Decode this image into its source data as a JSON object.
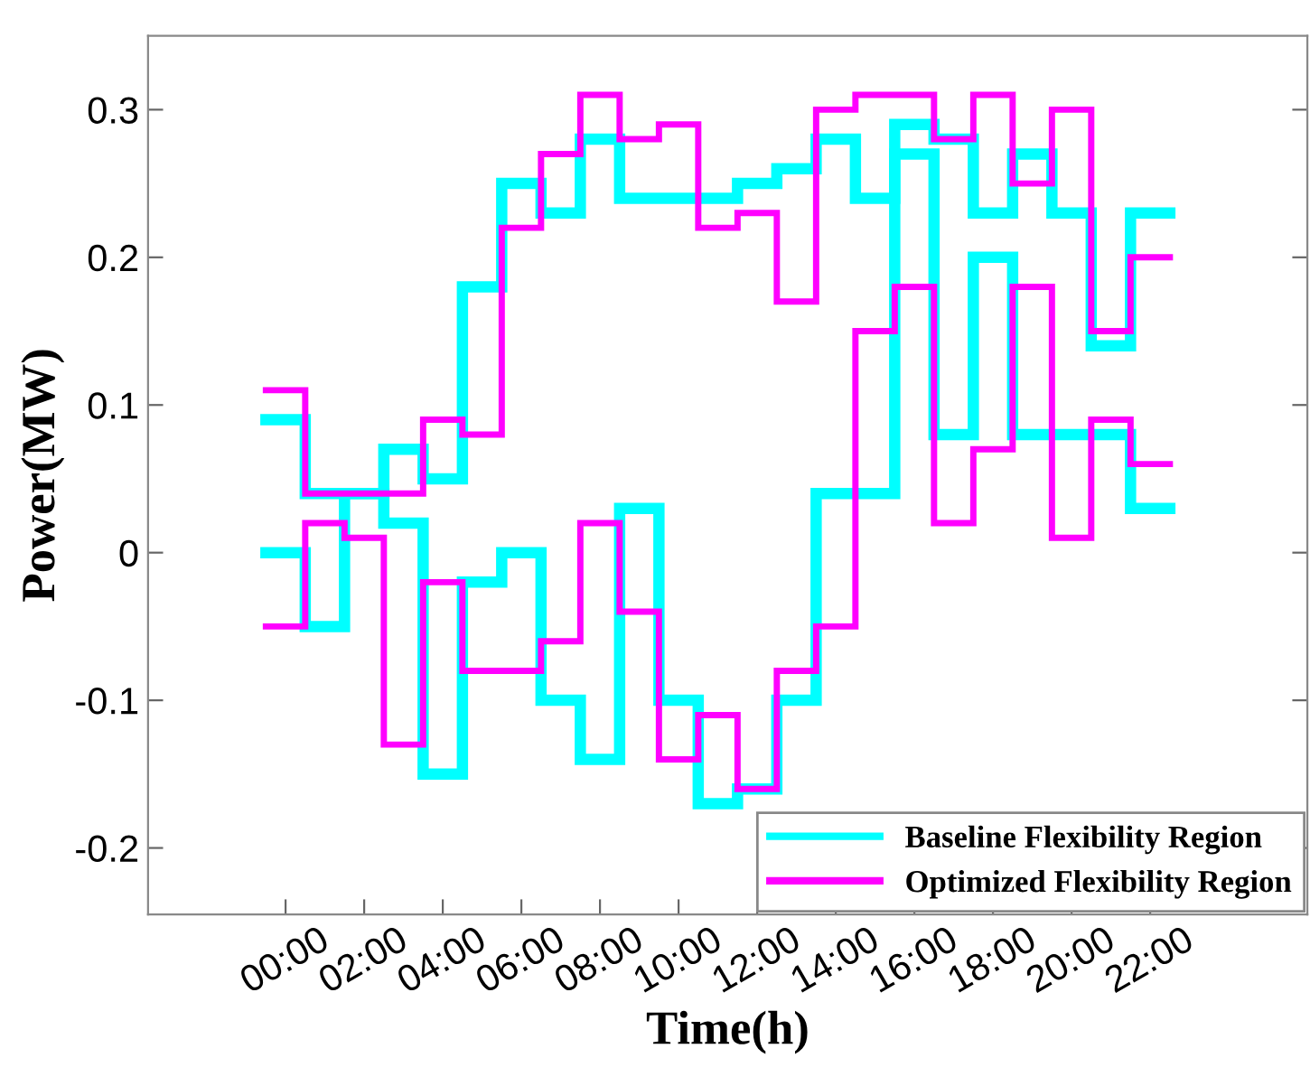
{
  "chart_data": {
    "type": "step",
    "xlabel": "Time(h)",
    "ylabel": "Power(MW)",
    "x": [
      -0.5,
      0.5,
      1.5,
      2.5,
      3.5,
      4.5,
      5.5,
      6.5,
      7.5,
      8.5,
      9.5,
      10.5,
      11.5,
      12.5,
      13.5,
      14.5,
      15.5,
      16.5,
      17.5,
      18.5,
      19.5,
      20.5,
      21.5,
      22.5
    ],
    "series": [
      {
        "name": "Baseline Flexibility Region",
        "color": "#00ffff",
        "values": [
          0.09,
          0.04,
          0.04,
          0.07,
          0.05,
          0.18,
          0.25,
          0.23,
          0.28,
          0.24,
          0.24,
          0.24,
          0.25,
          0.26,
          0.28,
          0.24,
          0.29,
          0.28,
          0.23,
          0.27,
          0.23,
          0.14,
          0.23,
          0.23
        ]
      },
      {
        "color": "#00ffff",
        "values": [
          0.0,
          -0.05,
          0.04,
          0.02,
          -0.15,
          -0.02,
          0.0,
          -0.1,
          -0.14,
          0.03,
          -0.1,
          -0.17,
          -0.16,
          -0.1,
          0.04,
          0.04,
          0.27,
          0.08,
          0.2,
          0.08,
          0.08,
          0.08,
          0.03,
          0.03
        ]
      },
      {
        "name": "Optimized Flexibility Region",
        "color": "#ff00ff",
        "values": [
          0.11,
          0.04,
          0.04,
          0.04,
          0.09,
          0.08,
          0.22,
          0.27,
          0.31,
          0.28,
          0.29,
          0.22,
          0.23,
          0.17,
          0.3,
          0.31,
          0.31,
          0.28,
          0.31,
          0.25,
          0.3,
          0.15,
          0.2,
          0.2
        ]
      },
      {
        "color": "#ff00ff",
        "values": [
          -0.05,
          0.02,
          0.01,
          -0.13,
          -0.02,
          -0.08,
          -0.08,
          -0.06,
          0.02,
          -0.04,
          -0.14,
          -0.11,
          -0.16,
          -0.08,
          -0.05,
          0.15,
          0.18,
          0.02,
          0.07,
          0.18,
          0.01,
          0.09,
          0.06,
          0.06
        ]
      }
    ],
    "xlim": [
      -3.5,
      26
    ],
    "xticks": [
      {
        "value": 0,
        "label": "00:00"
      },
      {
        "value": 2,
        "label": "02:00"
      },
      {
        "value": 4,
        "label": "04:00"
      },
      {
        "value": 6,
        "label": "06:00"
      },
      {
        "value": 8,
        "label": "08:00"
      },
      {
        "value": 10,
        "label": "10:00"
      },
      {
        "value": 12,
        "label": "12:00"
      },
      {
        "value": 14,
        "label": "14:00"
      },
      {
        "value": 16,
        "label": "16:00"
      },
      {
        "value": 18,
        "label": "18:00"
      },
      {
        "value": 20,
        "label": "20:00"
      },
      {
        "value": 22,
        "label": "22:00"
      }
    ],
    "ylim": [
      -0.245,
      0.35
    ],
    "yticks": [
      -0.2,
      -0.1,
      0,
      0.1,
      0.2,
      0.3
    ],
    "legend": "bottom right",
    "grid": false
  }
}
